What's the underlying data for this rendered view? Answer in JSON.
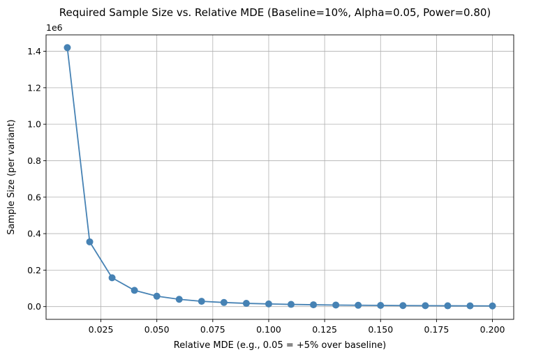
{
  "chart_data": {
    "type": "line",
    "title": "Required Sample Size vs. Relative MDE (Baseline=10%, Alpha=0.05, Power=0.80)",
    "xlabel": "Relative MDE (e.g., 0.05 = +5% over baseline)",
    "ylabel": "Sample Size (per variant)",
    "y_offset_label": "1e6",
    "xlim": [
      0.0005,
      0.2095
    ],
    "ylim": [
      -70000,
      1490000
    ],
    "x_ticks": [
      0.025,
      0.05,
      0.075,
      0.1,
      0.125,
      0.15,
      0.175,
      0.2
    ],
    "x_tick_labels": [
      "0.025",
      "0.050",
      "0.075",
      "0.100",
      "0.125",
      "0.150",
      "0.175",
      "0.200"
    ],
    "y_ticks": [
      0,
      200000,
      400000,
      600000,
      800000,
      1000000,
      1200000,
      1400000
    ],
    "y_tick_labels": [
      "0.0",
      "0.2",
      "0.4",
      "0.6",
      "0.8",
      "1.0",
      "1.2",
      "1.4"
    ],
    "grid": true,
    "series": [
      {
        "name": "Sample Size",
        "color": "#4682b4",
        "marker": "circle",
        "x": [
          0.01,
          0.02,
          0.03,
          0.04,
          0.05,
          0.06,
          0.07,
          0.08,
          0.09,
          0.1,
          0.11,
          0.12,
          0.13,
          0.14,
          0.15,
          0.16,
          0.17,
          0.18,
          0.19,
          0.2
        ],
        "y": [
          1420000,
          355000,
          158000,
          89000,
          57000,
          40000,
          29000,
          22500,
          17800,
          14500,
          12000,
          10000,
          8500,
          7300,
          6400,
          5600,
          5000,
          4400,
          4000,
          3600
        ]
      }
    ]
  }
}
